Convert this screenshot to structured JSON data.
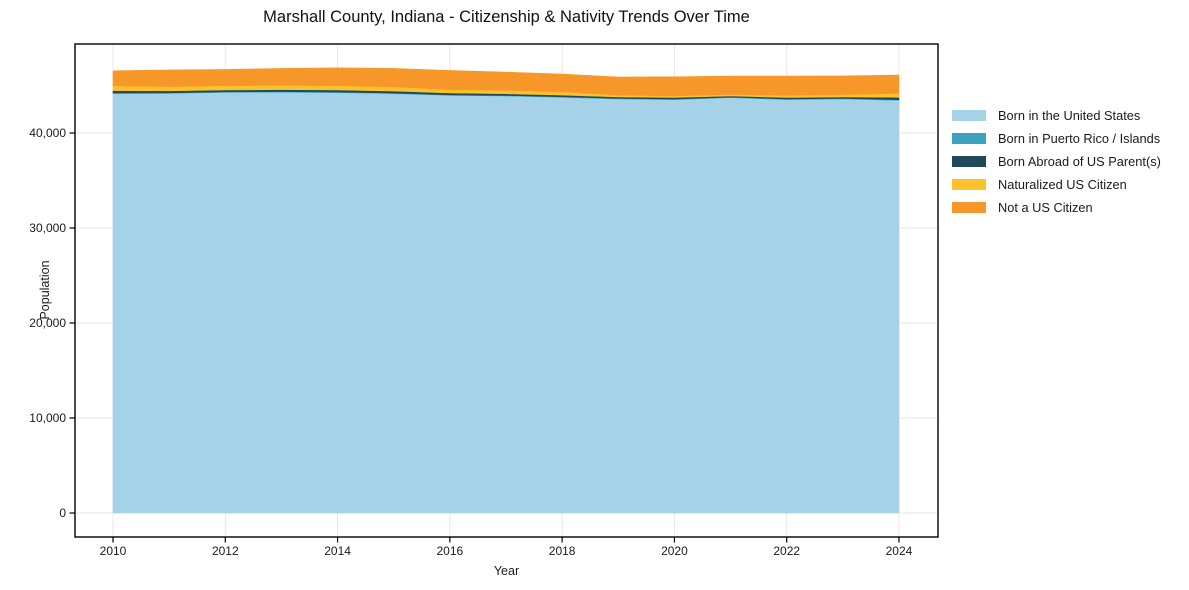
{
  "title": "Marshall County, Indiana - Citizenship & Nativity Trends Over Time",
  "chart_data": {
    "type": "area",
    "stacked": true,
    "title": "Marshall County, Indiana - Citizenship & Nativity Trends Over Time",
    "xlabel": "Year",
    "ylabel": "Population",
    "x": [
      2010,
      2011,
      2012,
      2013,
      2014,
      2015,
      2016,
      2017,
      2018,
      2019,
      2020,
      2021,
      2022,
      2023,
      2024
    ],
    "series": [
      {
        "name": "Born in the United States",
        "color": "#a5d2e7",
        "values": [
          44150,
          44180,
          44280,
          44300,
          44250,
          44150,
          43970,
          43900,
          43760,
          43590,
          43520,
          43730,
          43520,
          43590,
          43450
        ]
      },
      {
        "name": "Born in Puerto Rico / Islands",
        "color": "#3ba3bf",
        "values": [
          60,
          55,
          50,
          55,
          60,
          55,
          50,
          55,
          60,
          55,
          50,
          55,
          60,
          55,
          60
        ]
      },
      {
        "name": "Born Abroad of US Parent(s)",
        "color": "#1f4a5c",
        "values": [
          250,
          200,
          200,
          210,
          220,
          210,
          190,
          180,
          170,
          150,
          170,
          120,
          160,
          150,
          250
        ]
      },
      {
        "name": "Naturalized US Citizen",
        "color": "#fcc12d",
        "values": [
          520,
          450,
          450,
          460,
          450,
          450,
          350,
          360,
          350,
          200,
          170,
          150,
          230,
          250,
          420
        ]
      },
      {
        "name": "Not a US Citizen",
        "color": "#f79729",
        "values": [
          1570,
          1750,
          1710,
          1770,
          1880,
          1930,
          2030,
          1910,
          1870,
          1900,
          2010,
          1940,
          2020,
          1960,
          1920
        ]
      }
    ],
    "xticks": [
      2010,
      2012,
      2014,
      2016,
      2018,
      2020,
      2022,
      2024
    ],
    "xtick_labels": [
      "2010",
      "2012",
      "2014",
      "2016",
      "2018",
      "2020",
      "2022",
      "2024"
    ],
    "yticks": [
      0,
      10000,
      20000,
      30000,
      40000
    ],
    "ytick_labels": [
      "0",
      "10,000",
      "20,000",
      "30,000",
      "40,000"
    ],
    "xlim": [
      2009.323,
      2024.695
    ],
    "ylim": [
      0,
      49370
    ],
    "grid": true,
    "legend_position": "right of plot, no frame"
  },
  "colors": {
    "grid": "#e7e7e7",
    "spine": "#000000",
    "tick": "#000000",
    "text": "#1a1a1a",
    "background": "#ffffff"
  }
}
